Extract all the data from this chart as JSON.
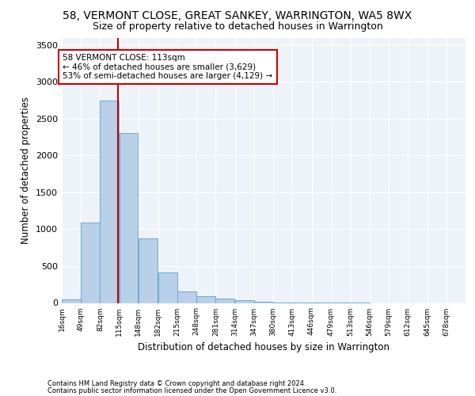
{
  "title1": "58, VERMONT CLOSE, GREAT SANKEY, WARRINGTON, WA5 8WX",
  "title2": "Size of property relative to detached houses in Warrington",
  "xlabel": "Distribution of detached houses by size in Warrington",
  "ylabel": "Number of detached properties",
  "footer1": "Contains HM Land Registry data © Crown copyright and database right 2024.",
  "footer2": "Contains public sector information licensed under the Open Government Licence v3.0.",
  "annotation_title": "58 VERMONT CLOSE: 113sqm",
  "annotation_line1": "← 46% of detached houses are smaller (3,629)",
  "annotation_line2": "53% of semi-detached houses are larger (4,129) →",
  "subject_size": 113,
  "bin_labels": [
    "16sqm",
    "49sqm",
    "82sqm",
    "115sqm",
    "148sqm",
    "182sqm",
    "215sqm",
    "248sqm",
    "281sqm",
    "314sqm",
    "347sqm",
    "380sqm",
    "413sqm",
    "446sqm",
    "479sqm",
    "513sqm",
    "546sqm",
    "579sqm",
    "612sqm",
    "645sqm",
    "678sqm"
  ],
  "bin_edges": [
    16,
    49,
    82,
    115,
    148,
    182,
    215,
    248,
    281,
    314,
    347,
    380,
    413,
    446,
    479,
    513,
    546,
    579,
    612,
    645,
    678
  ],
  "bar_heights": [
    50,
    1090,
    2750,
    2300,
    880,
    415,
    160,
    90,
    55,
    40,
    20,
    10,
    5,
    3,
    2,
    1,
    0,
    0,
    0,
    0
  ],
  "bar_color": "#b8d0e8",
  "bar_edge_color": "#6aaad4",
  "vline_color": "#cc0000",
  "vline_x": 113,
  "annotation_box_color": "#cc0000",
  "ylim": [
    0,
    3600
  ],
  "yticks": [
    0,
    500,
    1000,
    1500,
    2000,
    2500,
    3000,
    3500
  ],
  "bg_color": "#eef2f9",
  "title1_fontsize": 10,
  "title2_fontsize": 9,
  "xlabel_fontsize": 8.5,
  "ylabel_fontsize": 8.5,
  "annotation_fontsize": 7.5,
  "footer_fontsize": 6.0
}
